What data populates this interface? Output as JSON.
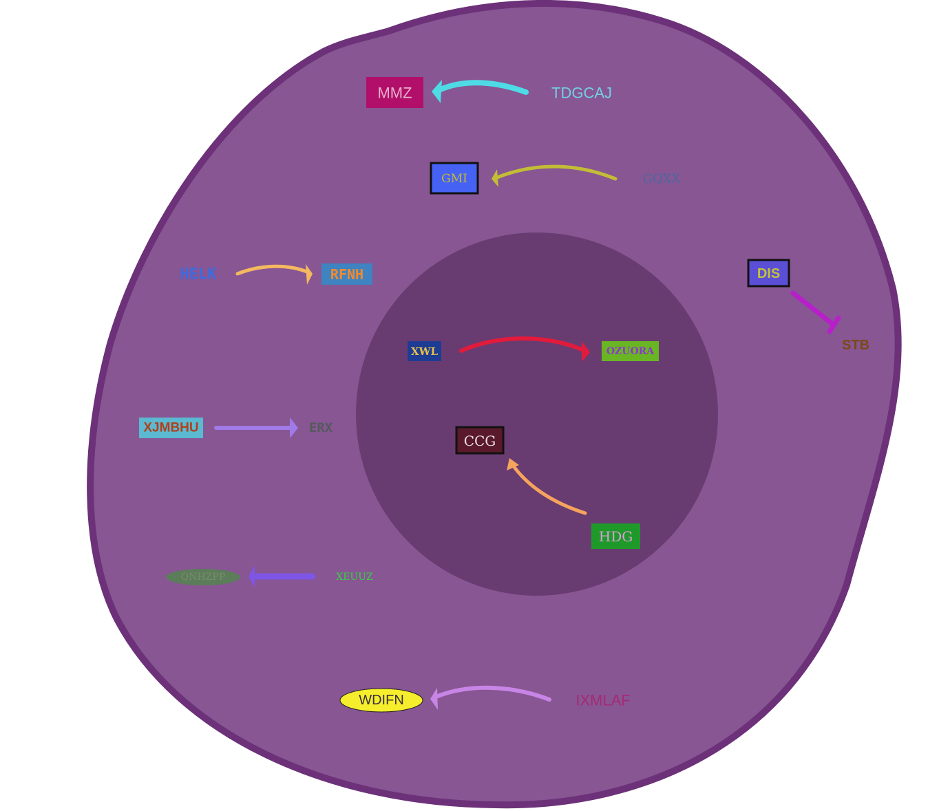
{
  "colors": {
    "cell_fill": "#875693",
    "cell_border": "#6c3179",
    "nucleus_fill": "#683c71",
    "background": "#ffffff"
  },
  "nodes": {
    "mmz": {
      "label": "MMZ",
      "text_color": "#e7b0c9",
      "fill": "#b10f6a"
    },
    "tdgcaj": {
      "label": "TDGCAJ",
      "text_color": "#74cfe3"
    },
    "gmi": {
      "label": "GMI",
      "text_color": "#c9b92f",
      "fill": "#4562f5",
      "border": "#111111"
    },
    "gqxx": {
      "label": "GQXX",
      "text_color": "#4a689f"
    },
    "helk": {
      "label": "HELK",
      "text_color": "#3d6bdf"
    },
    "rfnh": {
      "label": "RFNH",
      "text_color": "#f28a2e",
      "fill": "#3f83c1"
    },
    "dis": {
      "label": "DIS",
      "text_color": "#c3c23a",
      "fill": "#5b4fd6",
      "border": "#111111"
    },
    "stb": {
      "label": "STB",
      "text_color": "#7a4a16"
    },
    "xwl": {
      "label": "XWL",
      "text_color": "#e8c04a",
      "fill": "#1e3c94"
    },
    "ozuora": {
      "label": "OZUORA",
      "text_color": "#8b39c9",
      "fill": "#6ab524"
    },
    "xjmbhu": {
      "label": "XJMBHU",
      "text_color": "#b1401d",
      "fill": "#5bbad1"
    },
    "erx": {
      "label": "ERX",
      "text_color": "#555a5e"
    },
    "ccg": {
      "label": "CCG",
      "text_color": "#eadfe6",
      "fill": "#5a1a2c",
      "border": "#111111"
    },
    "hdg": {
      "label": "HDG",
      "text_color": "#d8a0d8",
      "fill": "#1f9a2a"
    },
    "qnhzpp": {
      "label": "QNHZPP",
      "text_color": "#7a8a6a",
      "fill": "#5c7d5a"
    },
    "xeuuz": {
      "label": "XEUUZ",
      "text_color": "#32d43e"
    },
    "wdifn": {
      "label": "WDIFN",
      "text_color": "#3a2f3a",
      "fill": "#f6ee2c"
    },
    "ixmlaf": {
      "label": "IXMLAF",
      "text_color": "#a52a74"
    }
  },
  "edges": [
    {
      "from": "TDGCAJ",
      "to": "MMZ",
      "type": "activation",
      "color": "#4fdbe6"
    },
    {
      "from": "GQXX",
      "to": "GMI",
      "type": "activation",
      "color": "#c3bd36"
    },
    {
      "from": "HELK",
      "to": "RFNH",
      "type": "activation",
      "color": "#f4b95f"
    },
    {
      "from": "DIS",
      "to": "STB",
      "type": "inhibition",
      "color": "#b720c9"
    },
    {
      "from": "XWL",
      "to": "OZUORA",
      "type": "activation",
      "color": "#e21b3c"
    },
    {
      "from": "XJMBHU",
      "to": "ERX",
      "type": "activation",
      "color": "#a07ae6"
    },
    {
      "from": "HDG",
      "to": "CCG",
      "type": "activation",
      "color": "#f6a35d"
    },
    {
      "from": "XEUUZ",
      "to": "QNHZPP",
      "type": "activation",
      "color": "#7f55e6"
    },
    {
      "from": "IXMLAF",
      "to": "WDIFN",
      "type": "activation",
      "color": "#c885e6"
    }
  ]
}
